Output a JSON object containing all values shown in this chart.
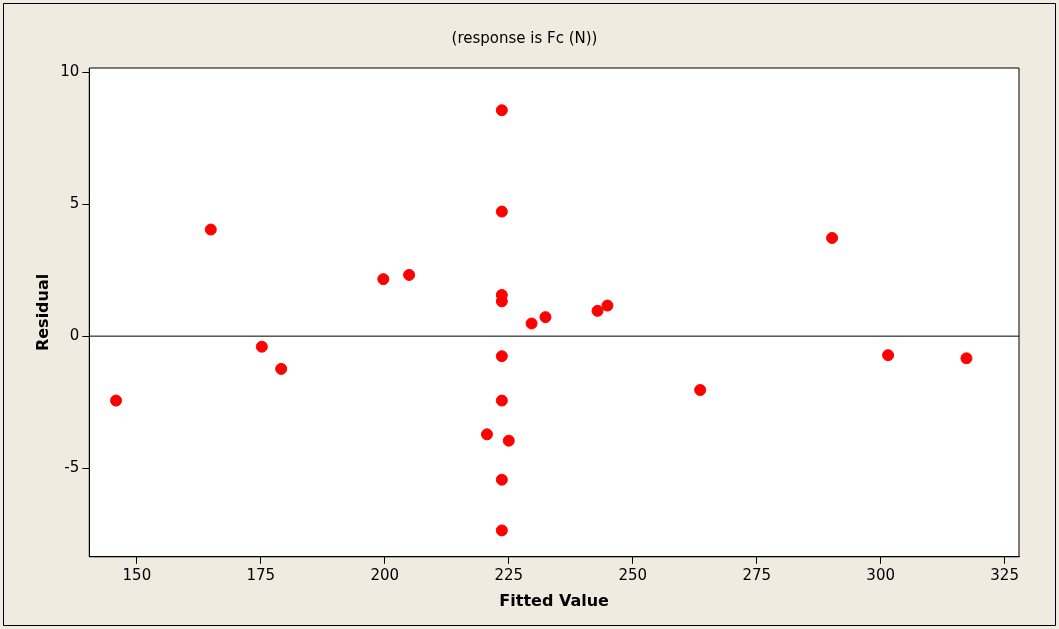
{
  "chart_data": {
    "type": "scatter",
    "title": "(response is Fc (N))",
    "xlabel": "Fitted Value",
    "ylabel": "Residual",
    "xlim": [
      140.4,
      327.9
    ],
    "xticks": [
      150,
      175,
      200,
      225,
      250,
      275,
      300,
      325
    ],
    "ylim": [
      -8.36,
      10.16
    ],
    "yticks": [
      -5,
      0,
      5,
      10
    ],
    "grid": false,
    "legend": false,
    "marker": "circle",
    "ref_lines": [
      {
        "axis": "y",
        "value": 0,
        "color": "#000000"
      }
    ],
    "series": [
      {
        "color": "#ff0000",
        "x": [
          145.8,
          164.9,
          175.2,
          179.1,
          199.7,
          204.9,
          223.6,
          223.6,
          223.6,
          223.6,
          223.6,
          223.6,
          220.6,
          225.0,
          223.6,
          223.6,
          229.6,
          232.4,
          242.9,
          244.9,
          263.6,
          290.2,
          301.5,
          317.3
        ],
        "values": [
          -2.44,
          4.04,
          -0.4,
          -1.24,
          2.16,
          2.32,
          8.56,
          4.72,
          1.56,
          1.32,
          -0.76,
          -2.44,
          -3.72,
          -3.96,
          -5.44,
          -7.36,
          0.48,
          0.72,
          0.96,
          1.16,
          -2.04,
          3.72,
          -0.72,
          -0.84
        ]
      }
    ]
  }
}
